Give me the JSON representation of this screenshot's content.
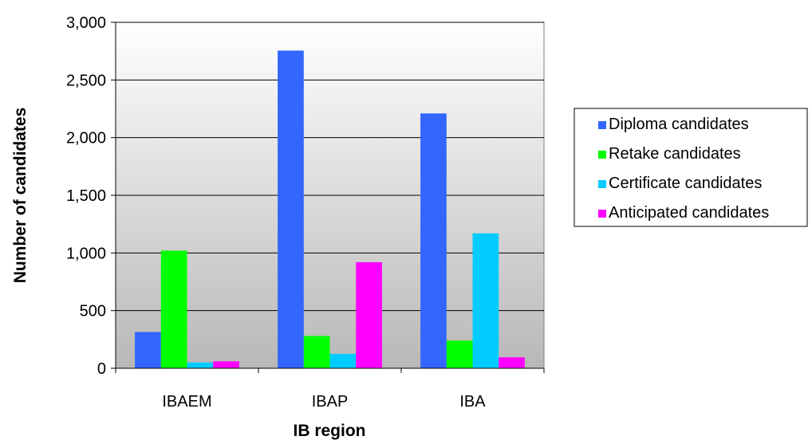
{
  "chart_data": {
    "type": "bar",
    "xlabel": "IB region",
    "ylabel": "Number of candidates",
    "ylim": [
      0,
      3000
    ],
    "yticks": [
      "0",
      "500",
      "1,000",
      "1,500",
      "2,000",
      "2,500",
      "3,000"
    ],
    "ytick_values": [
      0,
      500,
      1000,
      1500,
      2000,
      2500,
      3000
    ],
    "categories": [
      "IBAEM",
      "IBAP",
      "IBA"
    ],
    "series": [
      {
        "name": "Diploma candidates",
        "color": "#3366ff",
        "values": [
          315,
          2755,
          2210
        ]
      },
      {
        "name": "Retake candidates",
        "color": "#00ff00",
        "values": [
          1020,
          280,
          240
        ]
      },
      {
        "name": "Certificate candidates",
        "color": "#00ccff",
        "values": [
          50,
          125,
          1170
        ]
      },
      {
        "name": "Anticipated candidates",
        "color": "#ff00ff",
        "values": [
          60,
          920,
          95
        ]
      }
    ],
    "grid": true,
    "legend_position": "right",
    "plot_background": "gradient-white-to-gray"
  }
}
